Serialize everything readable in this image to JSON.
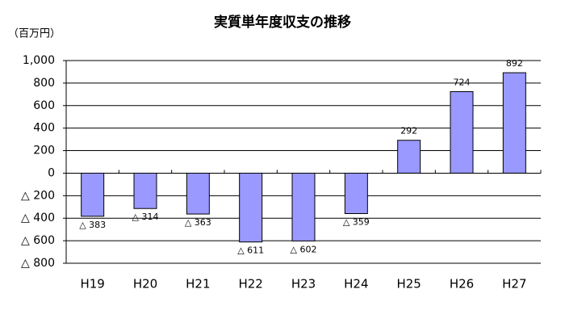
{
  "chart_data": {
    "type": "bar",
    "title": "実質単年度収支の推移",
    "unit_label": "（百万円）",
    "categories": [
      "H19",
      "H20",
      "H21",
      "H22",
      "H23",
      "H24",
      "H25",
      "H26",
      "H27"
    ],
    "values": [
      -383,
      -314,
      -363,
      -611,
      -602,
      -359,
      292,
      724,
      892
    ],
    "value_labels": [
      "△ 383",
      "△ 314",
      "△ 363",
      "△ 611",
      "△ 602",
      "△ 359",
      "292",
      "724",
      "892"
    ],
    "color": "#9999ff",
    "ylim": [
      -800,
      1000
    ],
    "yticks": [
      {
        "value": -800,
        "label": "△ 800"
      },
      {
        "value": -600,
        "label": "△ 600"
      },
      {
        "value": -400,
        "label": "△ 400"
      },
      {
        "value": -200,
        "label": "△ 200"
      },
      0,
      200,
      400,
      600,
      800,
      {
        "value": 1000,
        "label": "1,000"
      }
    ],
    "grid": true
  }
}
